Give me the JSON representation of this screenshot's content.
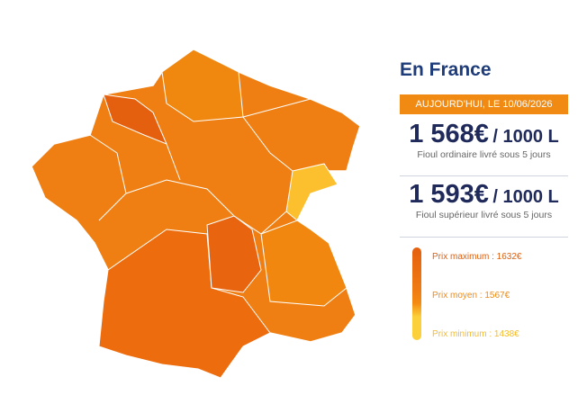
{
  "title": "En France",
  "date_badge": "AUJOURD'HUI, LE 10/06/2026",
  "prices": [
    {
      "amount": "1 568€",
      "unit": "/ 1000 L",
      "description": "Fioul ordinaire livré sous 5 jours"
    },
    {
      "amount": "1 593€",
      "unit": "/ 1000 L",
      "description": "Fioul supérieur livré sous 5 jours"
    }
  ],
  "legend": [
    "Prix maximum : 1632€",
    "Prix moyen : 1567€",
    "Prix minimum : 1438€"
  ]
}
